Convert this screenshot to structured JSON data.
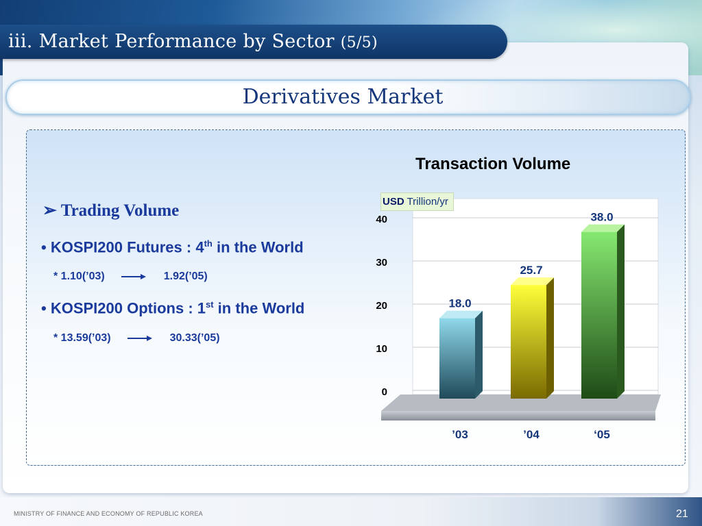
{
  "slide": {
    "title_main": "iii. Market Performance by Sector ",
    "title_paren": "(5/5)",
    "subtitle": "Derivatives Market",
    "footer": "MINISTRY OF FINANCE AND ECONOMY OF REPUBLIC KOREA",
    "page_number": "21"
  },
  "left": {
    "heading_marker": "➢",
    "heading": "Trading Volume",
    "items": [
      {
        "bullet": "•",
        "text": "KOSPI200 Futures : 4",
        "sup": "th",
        "tail": " in the World",
        "detail_prefix": "*  1.10(’03)",
        "detail_suffix": "1.92(’05)"
      },
      {
        "bullet": "•",
        "text": "KOSPI200 Options : 1",
        "sup": "st",
        "tail": " in the World",
        "detail_prefix": "*  13.59(’03)",
        "detail_suffix": "30.33(’05)"
      }
    ]
  },
  "colors": {
    "title_bar": "#0f3566",
    "text_blue": "#1a3a9c",
    "bar_2003": "#4a8fa8",
    "bar_2004": "#d8d400",
    "bar_2005": "#58b83c"
  },
  "chart_data": {
    "type": "bar",
    "title": "Transaction Volume",
    "unit_bold": "USD",
    "unit_rest": " Trillion/yr",
    "categories": [
      "’03",
      "’04",
      "‘05"
    ],
    "values": [
      18.0,
      25.7,
      38.0
    ],
    "value_labels": [
      "18.0",
      "25.7",
      "38.0"
    ],
    "yticks": [
      0,
      10,
      20,
      30,
      40
    ],
    "ylim": [
      0,
      40
    ],
    "grid": true,
    "style": "3d"
  }
}
